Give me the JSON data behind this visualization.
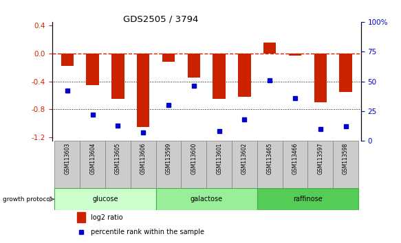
{
  "title": "GDS2505 / 3794",
  "samples": [
    "GSM113603",
    "GSM113604",
    "GSM113605",
    "GSM113606",
    "GSM113599",
    "GSM113600",
    "GSM113601",
    "GSM113602",
    "GSM113465",
    "GSM113466",
    "GSM113597",
    "GSM113598"
  ],
  "log2_ratio": [
    -0.18,
    -0.45,
    -0.65,
    -1.05,
    -0.12,
    -0.35,
    -0.65,
    -0.62,
    0.15,
    -0.03,
    -0.7,
    -0.55
  ],
  "percentile_rank": [
    42,
    22,
    13,
    7,
    30,
    46,
    8,
    18,
    51,
    36,
    10,
    12
  ],
  "groups": [
    {
      "label": "glucose",
      "start": 0,
      "end": 3,
      "color": "#ccffcc",
      "border": "#44aa44"
    },
    {
      "label": "galactose",
      "start": 4,
      "end": 7,
      "color": "#99ee99",
      "border": "#44aa44"
    },
    {
      "label": "raffinose",
      "start": 8,
      "end": 11,
      "color": "#55cc55",
      "border": "#44aa44"
    }
  ],
  "bar_color": "#cc2200",
  "dot_color": "#0000cc",
  "ylim_left": [
    -1.25,
    0.45
  ],
  "ylim_right": [
    0,
    100
  ],
  "hline_y": 0.0,
  "dotted_lines": [
    -0.4,
    -0.8
  ],
  "right_ticks": [
    0,
    25,
    50,
    75,
    100
  ],
  "right_tick_labels": [
    "0",
    "25",
    "50",
    "75",
    "100%"
  ],
  "left_ticks": [
    -1.2,
    -0.8,
    -0.4,
    0.0,
    0.4
  ],
  "growth_label": "growth protocol",
  "legend_bar_label": "log2 ratio",
  "legend_dot_label": "percentile rank within the sample",
  "sample_box_color": "#cccccc",
  "sample_box_edge": "#888888"
}
